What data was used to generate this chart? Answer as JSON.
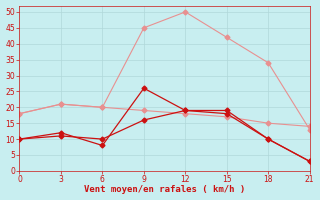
{
  "x": [
    0,
    3,
    6,
    9,
    12,
    15,
    18,
    21
  ],
  "line1": [
    18,
    21,
    20,
    45,
    50,
    42,
    34,
    13
  ],
  "line2": [
    18,
    21,
    20,
    19,
    18,
    17,
    15,
    14
  ],
  "line3": [
    10,
    12,
    8,
    26,
    19,
    19,
    10,
    3
  ],
  "line4": [
    10,
    11,
    10,
    16,
    19,
    18,
    10,
    3
  ],
  "color_light": "#e89090",
  "color_dark": "#cc1111",
  "bg_color": "#c8eef0",
  "grid_color": "#b0d8da",
  "xlabel": "Vent moyen/en rafales ( km/h )",
  "xlabel_color": "#cc1111",
  "ylabel_ticks": [
    0,
    5,
    10,
    15,
    20,
    25,
    30,
    35,
    40,
    45,
    50
  ],
  "xticks": [
    0,
    3,
    6,
    9,
    12,
    15,
    18,
    21
  ],
  "ylim": [
    0,
    52
  ],
  "xlim": [
    0,
    21
  ],
  "tick_color": "#cc1111",
  "spine_color": "#cc1111"
}
